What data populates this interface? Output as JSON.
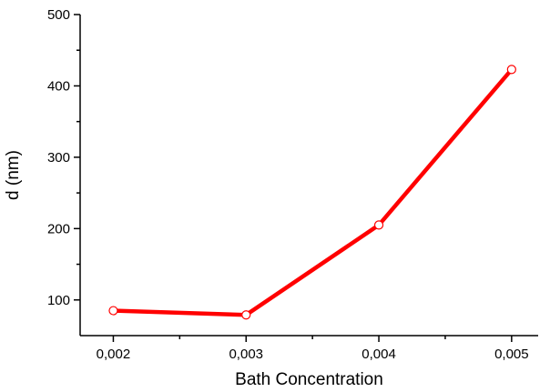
{
  "chart_data": {
    "type": "line",
    "xlabel": "Bath Concentration",
    "ylabel": "d (nm)",
    "x": [
      0.002,
      0.003,
      0.004,
      0.005
    ],
    "x_tick_labels": [
      "0,002",
      "0,003",
      "0,004",
      "0,005"
    ],
    "series": [
      {
        "values": [
          85,
          79,
          205,
          423
        ],
        "color": "#ff0000",
        "marker": "open-circle"
      }
    ],
    "xlim": [
      0.00175,
      0.0052
    ],
    "ylim": [
      50,
      500
    ],
    "y_ticks": [
      100,
      200,
      300,
      400,
      500
    ],
    "y_tick_labels": [
      "100",
      "200",
      "300",
      "400",
      "500"
    ],
    "grid": false,
    "legend": "none"
  }
}
